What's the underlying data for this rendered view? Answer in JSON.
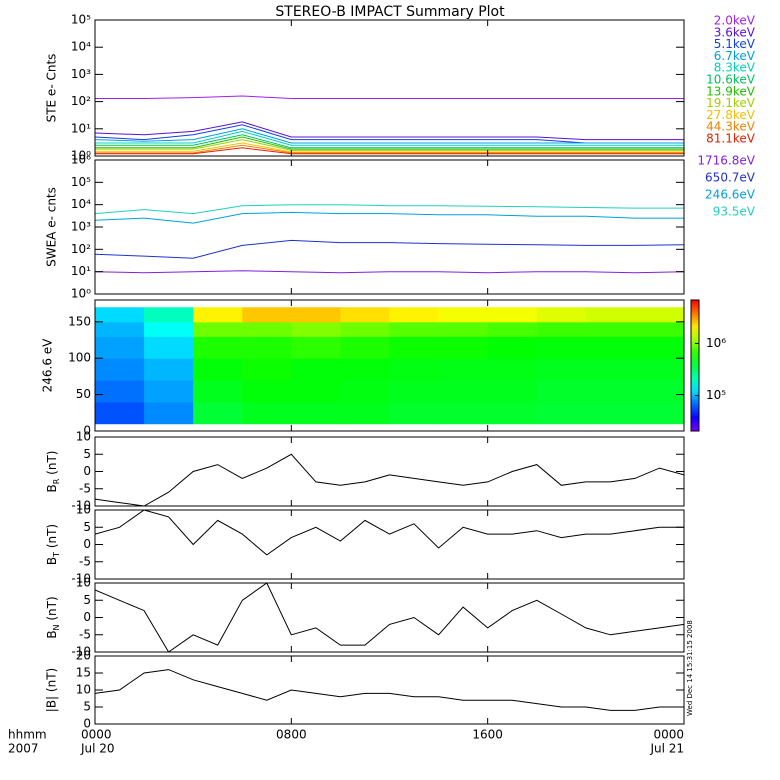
{
  "title": "STEREO-B IMPACT Summary Plot",
  "xlim": [
    0,
    24
  ],
  "xticks": [
    {
      "value": 0,
      "label": "0000"
    },
    {
      "value": 8,
      "label": "0800"
    },
    {
      "value": 16,
      "label": "1600"
    },
    {
      "value": 24,
      "label": "0000"
    }
  ],
  "date_labels": [
    {
      "value": 0,
      "label": "Jul 20"
    },
    {
      "value": 24,
      "label": "Jul 21"
    }
  ],
  "axis_legend": [
    "hhmm",
    "2007"
  ],
  "timestamp": "Wed Dec 14 15:31:15 2008",
  "chart_data": [
    {
      "type": "line",
      "ylabel": "STE e- Cnts",
      "log_y": true,
      "ylim": [
        1,
        100000
      ],
      "yticks": [
        {
          "value": 1,
          "label": "10⁰"
        },
        {
          "value": 10,
          "label": "10¹"
        },
        {
          "value": 100,
          "label": "10²"
        },
        {
          "value": 1000,
          "label": "10³"
        },
        {
          "value": 10000,
          "label": "10⁴"
        },
        {
          "value": 100000,
          "label": "10⁵"
        }
      ],
      "x": [
        0,
        2,
        4,
        6,
        8,
        10,
        12,
        14,
        16,
        18,
        20,
        22,
        24
      ],
      "series": [
        {
          "name": "2.0keV",
          "color": "#a020f0",
          "values": [
            130,
            130,
            140,
            160,
            130,
            130,
            130,
            130,
            130,
            130,
            130,
            130,
            130
          ]
        },
        {
          "name": "3.6keV",
          "color": "#5a10d8",
          "values": [
            7,
            6,
            8,
            18,
            5,
            5,
            5,
            5,
            5,
            5,
            4,
            4,
            4
          ]
        },
        {
          "name": "5.1keV",
          "color": "#1040e0",
          "values": [
            5,
            4,
            6,
            14,
            4,
            4,
            4,
            4,
            4,
            4,
            3,
            3,
            3
          ]
        },
        {
          "name": "6.7keV",
          "color": "#00a0e0",
          "values": [
            4,
            3.5,
            4,
            10,
            3,
            3,
            3,
            3,
            3,
            3,
            3,
            3,
            3
          ]
        },
        {
          "name": "8.3keV",
          "color": "#00d0c0",
          "values": [
            3,
            3,
            3,
            8,
            2.5,
            2.5,
            2.5,
            2.5,
            2.5,
            2.5,
            2.5,
            2.5,
            2.5
          ]
        },
        {
          "name": "10.6keV",
          "color": "#00c060",
          "values": [
            2.5,
            2.5,
            2.5,
            6,
            2,
            2,
            2,
            2,
            2,
            2,
            2,
            2,
            2
          ]
        },
        {
          "name": "13.9keV",
          "color": "#20c000",
          "values": [
            2,
            2,
            2,
            5,
            1.8,
            1.8,
            1.8,
            1.8,
            1.8,
            1.8,
            1.8,
            1.8,
            1.8
          ]
        },
        {
          "name": "19.1keV",
          "color": "#a0d000",
          "values": [
            1.8,
            1.8,
            1.8,
            4,
            1.6,
            1.6,
            1.6,
            1.6,
            1.6,
            1.6,
            1.6,
            1.6,
            1.6
          ]
        },
        {
          "name": "27.8keV",
          "color": "#f0c000",
          "values": [
            1.5,
            1.5,
            1.5,
            3,
            1.4,
            1.4,
            1.4,
            1.4,
            1.4,
            1.4,
            1.4,
            1.4,
            1.4
          ]
        },
        {
          "name": "44.3keV",
          "color": "#f08000",
          "values": [
            1.3,
            1.3,
            1.3,
            2.5,
            1.3,
            1.3,
            1.3,
            1.3,
            1.3,
            1.3,
            1.3,
            1.3,
            1.3
          ]
        },
        {
          "name": "81.1keV",
          "color": "#e02000",
          "values": [
            1.2,
            1.2,
            1.2,
            2,
            1.2,
            1.2,
            1.2,
            1.2,
            1.2,
            1.2,
            1.2,
            1.2,
            1.2
          ]
        }
      ]
    },
    {
      "type": "line",
      "ylabel": "SWEA e- cnts",
      "log_y": true,
      "ylim": [
        1,
        1000000
      ],
      "yticks": [
        {
          "value": 1,
          "label": "10⁰"
        },
        {
          "value": 10,
          "label": "10¹"
        },
        {
          "value": 100,
          "label": "10²"
        },
        {
          "value": 1000,
          "label": "10³"
        },
        {
          "value": 10000,
          "label": "10⁴"
        },
        {
          "value": 100000,
          "label": "10⁵"
        },
        {
          "value": 1000000,
          "label": "10⁶"
        }
      ],
      "x": [
        0,
        2,
        4,
        6,
        8,
        10,
        12,
        14,
        16,
        18,
        20,
        22,
        24
      ],
      "series": [
        {
          "name": "1716.8eV",
          "color": "#8020e0",
          "values": [
            10,
            9,
            10,
            11,
            10,
            9,
            10,
            10,
            9,
            10,
            10,
            9,
            10
          ]
        },
        {
          "name": "650.7eV",
          "color": "#2030d0",
          "values": [
            60,
            50,
            40,
            150,
            250,
            200,
            200,
            180,
            170,
            160,
            150,
            150,
            160
          ]
        },
        {
          "name": "246.6eV",
          "color": "#00a0e0",
          "values": [
            2000,
            2500,
            1500,
            4000,
            4500,
            4000,
            4000,
            3500,
            3500,
            3000,
            3000,
            2500,
            2500
          ]
        },
        {
          "name": "93.5eV",
          "color": "#20d0c0",
          "values": [
            4000,
            6000,
            4000,
            9000,
            10000,
            10000,
            9000,
            9000,
            8500,
            8000,
            7500,
            7000,
            7000
          ]
        }
      ]
    },
    {
      "type": "heatmap",
      "ylabel": "246.6 eV",
      "ylim": [
        0,
        180
      ],
      "yticks": [
        0,
        50,
        100,
        150
      ],
      "x": [
        0,
        2,
        4,
        6,
        8,
        10,
        12,
        14,
        16,
        18,
        20,
        22,
        24
      ],
      "y_bins": [
        10,
        40,
        70,
        100,
        130,
        150,
        170
      ],
      "clim": [
        21000,
        6800000
      ],
      "log_c": true,
      "cticks": [
        {
          "value": 100000,
          "label": "10⁵"
        },
        {
          "value": 1000000,
          "label": "10⁶"
        }
      ],
      "values": [
        [
          60000,
          80000,
          400000,
          450000,
          450000,
          450000,
          420000,
          420000,
          420000,
          400000,
          400000,
          400000
        ],
        [
          70000,
          90000,
          450000,
          500000,
          500000,
          480000,
          450000,
          450000,
          450000,
          420000,
          420000,
          420000
        ],
        [
          80000,
          100000,
          500000,
          550000,
          500000,
          500000,
          480000,
          470000,
          470000,
          450000,
          450000,
          450000
        ],
        [
          90000,
          120000,
          600000,
          600000,
          650000,
          600000,
          550000,
          550000,
          520000,
          500000,
          500000,
          500000
        ],
        [
          100000,
          150000,
          900000,
          900000,
          1000000,
          900000,
          800000,
          800000,
          750000,
          700000,
          700000,
          700000
        ],
        [
          120000,
          200000,
          2000000,
          2500000,
          2500000,
          2200000,
          2000000,
          1800000,
          1800000,
          1600000,
          1500000,
          1500000
        ]
      ]
    },
    {
      "type": "line",
      "ylabel": {
        "main": "B",
        "sub": "R",
        "unit": " (nT)"
      },
      "ylim": [
        -10,
        10
      ],
      "yticks": [
        -10,
        -5,
        0,
        5,
        10
      ],
      "x": [
        0,
        1,
        2,
        3,
        4,
        5,
        6,
        7,
        8,
        9,
        10,
        11,
        12,
        13,
        14,
        15,
        16,
        17,
        18,
        19,
        20,
        21,
        22,
        23,
        24
      ],
      "series": [
        {
          "color": "#000000",
          "values": [
            -8,
            -9,
            -10,
            -6,
            0,
            2,
            -2,
            1,
            5,
            -3,
            -4,
            -3,
            -1,
            -2,
            -3,
            -4,
            -3,
            0,
            2,
            -4,
            -3,
            -3,
            -2,
            1,
            -1
          ]
        }
      ]
    },
    {
      "type": "line",
      "ylabel": {
        "main": "B",
        "sub": "T",
        "unit": " (nT)"
      },
      "ylim": [
        -10,
        10
      ],
      "yticks": [
        -10,
        -5,
        0,
        5,
        10
      ],
      "x": [
        0,
        1,
        2,
        3,
        4,
        5,
        6,
        7,
        8,
        9,
        10,
        11,
        12,
        13,
        14,
        15,
        16,
        17,
        18,
        19,
        20,
        21,
        22,
        23,
        24
      ],
      "series": [
        {
          "color": "#000000",
          "values": [
            3,
            5,
            10,
            8,
            0,
            7,
            3,
            -3,
            2,
            5,
            1,
            7,
            3,
            6,
            -1,
            5,
            3,
            3,
            4,
            2,
            3,
            3,
            4,
            5,
            5
          ]
        }
      ]
    },
    {
      "type": "line",
      "ylabel": {
        "main": "B",
        "sub": "N",
        "unit": " (nT)"
      },
      "ylim": [
        -10,
        10
      ],
      "yticks": [
        -10,
        -5,
        0,
        5,
        10
      ],
      "x": [
        0,
        1,
        2,
        3,
        4,
        5,
        6,
        7,
        8,
        9,
        10,
        11,
        12,
        13,
        14,
        15,
        16,
        17,
        18,
        19,
        20,
        21,
        22,
        23,
        24
      ],
      "series": [
        {
          "color": "#000000",
          "values": [
            8,
            5,
            2,
            -10,
            -5,
            -8,
            5,
            10,
            -5,
            -3,
            -8,
            -8,
            -2,
            0,
            -5,
            3,
            -3,
            2,
            5,
            1,
            -3,
            -5,
            -4,
            -3,
            -2
          ]
        }
      ]
    },
    {
      "type": "line",
      "ylabel": "|B| (nT)",
      "ylim": [
        0,
        20
      ],
      "yticks": [
        0,
        5,
        10,
        15,
        20
      ],
      "x": [
        0,
        1,
        2,
        3,
        4,
        5,
        6,
        7,
        8,
        9,
        10,
        11,
        12,
        13,
        14,
        15,
        16,
        17,
        18,
        19,
        20,
        21,
        22,
        23,
        24
      ],
      "series": [
        {
          "color": "#000000",
          "values": [
            9,
            10,
            15,
            16,
            13,
            11,
            9,
            7,
            10,
            9,
            8,
            9,
            9,
            8,
            8,
            7,
            7,
            7,
            6,
            5,
            5,
            4,
            4,
            5,
            5
          ]
        }
      ]
    }
  ]
}
